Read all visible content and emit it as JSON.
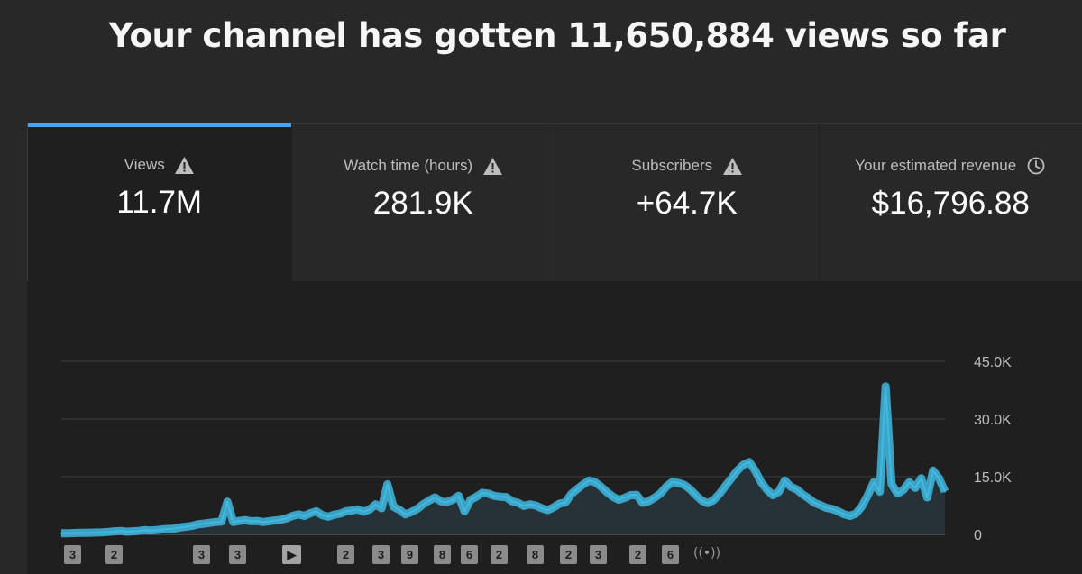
{
  "headline": "Your channel has gotten 11,650,884 views so far",
  "cards": [
    {
      "label": "Views",
      "value": "11.7M",
      "icon": "warning-icon",
      "active": true
    },
    {
      "label": "Watch time (hours)",
      "value": "281.9K",
      "icon": "warning-icon",
      "active": false
    },
    {
      "label": "Subscribers",
      "value": "+64.7K",
      "icon": "warning-icon",
      "active": false
    },
    {
      "label": "Your estimated revenue",
      "value": "$16,796.88",
      "icon": "clock-icon",
      "active": false
    }
  ],
  "colors": {
    "accent": "#3ea6ff",
    "series": "#41b8e0",
    "background": "#282828",
    "panel": "#1f1f1f"
  },
  "chart_data": {
    "type": "area",
    "title": "",
    "xlabel": "",
    "ylabel": "",
    "y_tick_labels": [
      "45.0K",
      "30.0K",
      "15.0K",
      "0"
    ],
    "y_ticks": [
      45000,
      30000,
      15000,
      0
    ],
    "ylim": [
      0,
      45000
    ],
    "y_axis_position": "right",
    "grid": true,
    "legend": "none",
    "series": [
      {
        "values": [
          300,
          300,
          350,
          400,
          400,
          450,
          500,
          550,
          650,
          800,
          900,
          700,
          800,
          900,
          1100,
          1000,
          1100,
          1300,
          1400,
          1500,
          1800,
          2000,
          2200,
          2600,
          2800,
          3000,
          3200,
          3300,
          8500,
          3200,
          3500,
          3700,
          3400,
          3500,
          3200,
          3400,
          3600,
          3800,
          4200,
          4800,
          5200,
          4800,
          5500,
          6000,
          5000,
          4600,
          5100,
          5400,
          6000,
          6200,
          6500,
          5900,
          6500,
          7800,
          6800,
          13000,
          7200,
          6400,
          5200,
          5800,
          6600,
          7800,
          8800,
          9600,
          8600,
          8400,
          9000,
          10000,
          6000,
          9000,
          9800,
          10800,
          10600,
          10000,
          9800,
          9700,
          8600,
          8200,
          7400,
          7800,
          7500,
          6800,
          6300,
          7000,
          8000,
          8300,
          10500,
          11800,
          13000,
          14000,
          13600,
          12400,
          11000,
          9800,
          9000,
          9500,
          10200,
          10300,
          8200,
          8600,
          9500,
          10600,
          12400,
          13600,
          13400,
          12900,
          11800,
          10200,
          8800,
          8100,
          8900,
          10600,
          12600,
          14600,
          16600,
          18100,
          18800,
          16600,
          13600,
          11600,
          10200,
          11100,
          14000,
          12400,
          11700,
          10400,
          9400,
          8200,
          7600,
          6900,
          6600,
          6000,
          5200,
          4800,
          5400,
          7300,
          10200,
          13600,
          11100,
          38500,
          13100,
          10600,
          11600,
          13600,
          12100,
          14600,
          9600,
          16600,
          14600,
          11100
        ]
      }
    ]
  },
  "markers": [
    "3",
    "2",
    "3",
    "3",
    "▶",
    "2",
    "3",
    "9",
    "8",
    "6",
    "2",
    "8",
    "2",
    "3",
    "2",
    "6",
    "((•))"
  ]
}
